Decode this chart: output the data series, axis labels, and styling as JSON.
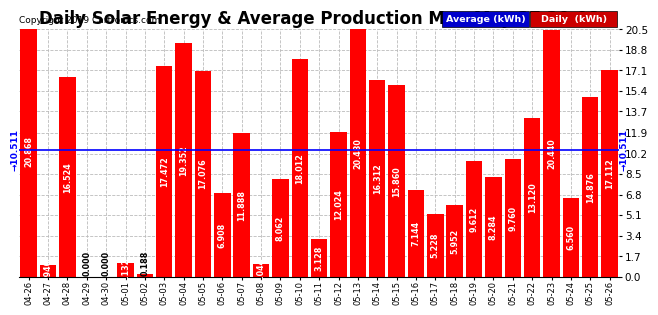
{
  "title": "Daily Solar Energy & Average Production Mon May 27 20:08",
  "copyright": "Copyright 2019 Cartronics.com",
  "average_label": "Average (kWh)",
  "daily_label": "Daily  (kWh)",
  "average_value": 10.511,
  "categories": [
    "04-26",
    "04-27",
    "04-28",
    "04-29",
    "04-30",
    "05-01",
    "05-02",
    "05-03",
    "05-04",
    "05-05",
    "05-06",
    "05-07",
    "05-08",
    "05-09",
    "05-10",
    "05-11",
    "05-12",
    "05-13",
    "05-14",
    "05-15",
    "05-16",
    "05-17",
    "05-18",
    "05-19",
    "05-20",
    "05-21",
    "05-22",
    "05-23",
    "05-24",
    "05-25",
    "05-26"
  ],
  "values": [
    20.868,
    0.94,
    16.524,
    0.0,
    0.0,
    1.132,
    0.188,
    17.472,
    19.352,
    17.076,
    6.908,
    11.888,
    1.044,
    8.062,
    18.012,
    3.128,
    12.024,
    20.48,
    16.312,
    15.86,
    7.144,
    5.228,
    5.952,
    9.612,
    8.284,
    9.76,
    13.12,
    20.44,
    6.56,
    14.876,
    17.112
  ],
  "bar_color": "#FF0000",
  "average_line_color": "#0000FF",
  "average_text_color": "#0000FF",
  "background_color": "#FFFFFF",
  "grid_color": "#BBBBBB",
  "ylim": [
    0,
    20.5
  ],
  "yticks": [
    0.0,
    1.7,
    3.4,
    5.1,
    6.8,
    8.5,
    10.2,
    11.9,
    13.7,
    15.4,
    17.1,
    18.8,
    20.5
  ],
  "title_fontsize": 12,
  "bar_value_fontsize": 5.8,
  "copyright_fontsize": 6.5,
  "legend_avg_bg": "#0000CC",
  "legend_daily_bg": "#CC0000",
  "legend_text_color": "#FFFFFF"
}
